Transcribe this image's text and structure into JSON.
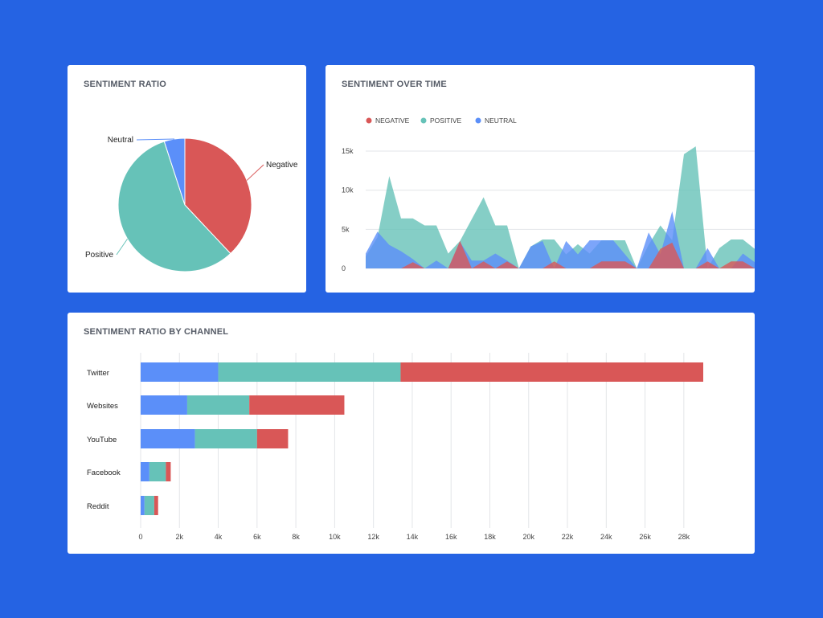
{
  "colors": {
    "background": "#2563e3",
    "negative": "#d95757",
    "positive": "#66c2b8",
    "neutral": "#5b8ff9",
    "grid": "#e3e5e8",
    "text": "#333333",
    "muted": "#666666"
  },
  "chart_data": [
    {
      "type": "pie",
      "title": "SENTIMENT RATIO",
      "slices": [
        {
          "label": "Negative",
          "value": 38,
          "key": "negative"
        },
        {
          "label": "Positive",
          "value": 57,
          "key": "positive"
        },
        {
          "label": "Neutral",
          "value": 5,
          "key": "neutral"
        }
      ]
    },
    {
      "type": "area",
      "title": "SENTIMENT OVER TIME",
      "legend": [
        {
          "label": "NEGATIVE",
          "key": "negative"
        },
        {
          "label": "POSITIVE",
          "key": "positive"
        },
        {
          "label": "NEUTRAL",
          "key": "neutral"
        }
      ],
      "ylim": [
        0,
        15000
      ],
      "yticks": [
        0,
        5000,
        10000,
        15000
      ],
      "ytick_labels": [
        "0",
        "5k",
        "10k",
        "15k"
      ],
      "series": [
        {
          "name": "POSITIVE",
          "key": "positive",
          "values": [
            1500,
            4000,
            11800,
            6400,
            6400,
            5500,
            5500,
            1900,
            3500,
            6300,
            9100,
            5500,
            5500,
            0,
            2800,
            3700,
            3700,
            1800,
            3100,
            1900,
            3600,
            3600,
            3600,
            0,
            3000,
            5500,
            3600,
            14600,
            15600,
            0,
            2600,
            3700,
            3700,
            2500
          ]
        },
        {
          "name": "NEUTRAL",
          "key": "neutral",
          "values": [
            1900,
            4700,
            3000,
            2200,
            1200,
            0,
            1000,
            0,
            3400,
            1000,
            1000,
            1900,
            1000,
            0,
            2800,
            3500,
            0,
            3500,
            1800,
            3600,
            3600,
            3600,
            1800,
            0,
            4600,
            1800,
            7300,
            0,
            0,
            2600,
            0,
            0,
            1900,
            800
          ]
        },
        {
          "name": "NEGATIVE",
          "key": "negative",
          "values": [
            0,
            0,
            0,
            0,
            800,
            0,
            0,
            0,
            3500,
            0,
            900,
            0,
            900,
            0,
            0,
            0,
            900,
            0,
            0,
            0,
            900,
            900,
            900,
            0,
            0,
            2500,
            3300,
            0,
            0,
            900,
            0,
            900,
            900,
            0
          ]
        }
      ]
    },
    {
      "type": "bar",
      "orientation": "horizontal",
      "stacked": true,
      "title": "SENTIMENT RATIO BY CHANNEL",
      "categories": [
        "Twitter",
        "Websites",
        "YouTube",
        "Facebook",
        "Reddit"
      ],
      "series": [
        {
          "name": "Neutral",
          "key": "neutral",
          "values": [
            4000,
            2400,
            2800,
            450,
            200
          ]
        },
        {
          "name": "Positive",
          "key": "positive",
          "values": [
            9400,
            3200,
            3200,
            850,
            500
          ]
        },
        {
          "name": "Negative",
          "key": "negative",
          "values": [
            15600,
            4900,
            1600,
            250,
            200
          ]
        }
      ],
      "xlim": [
        0,
        29000
      ],
      "xticks": [
        0,
        2000,
        4000,
        6000,
        8000,
        10000,
        12000,
        14000,
        16000,
        18000,
        20000,
        22000,
        24000,
        26000,
        28000
      ],
      "xtick_labels": [
        "0",
        "2k",
        "4k",
        "6k",
        "8k",
        "10k",
        "12k",
        "14k",
        "16k",
        "18k",
        "20k",
        "22k",
        "24k",
        "26k",
        "28k"
      ]
    }
  ]
}
